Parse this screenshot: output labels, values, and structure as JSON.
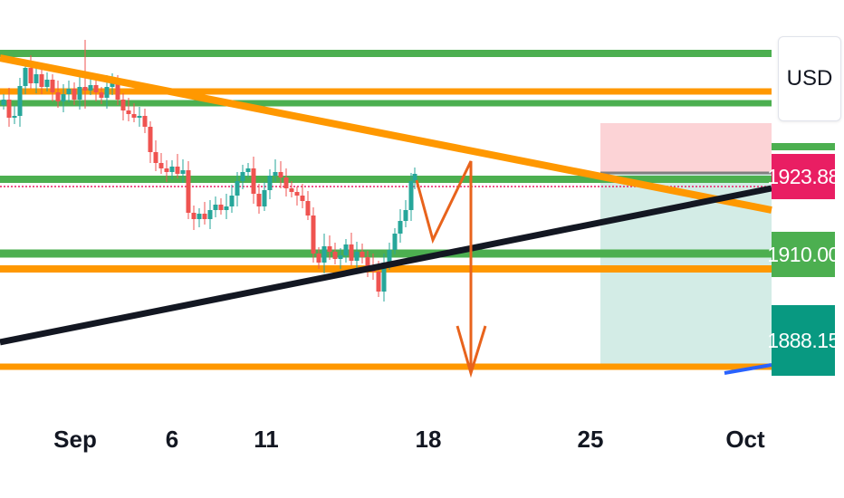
{
  "currency": "USD",
  "colors": {
    "up": "#26a69a",
    "down": "#ef5350",
    "support_green": "#4caf50",
    "orange": "#ff9800",
    "trend_black": "#131722",
    "drawing": "#e8631c",
    "sl_zone": "#f8c8cc",
    "tp_zone": "#cfe9e3",
    "price_line": "#e91e63"
  },
  "price_labels": [
    {
      "name": "price-label-current",
      "value": "1923.88",
      "color": "#e91e63"
    },
    {
      "name": "price-label-entry",
      "value": "1910.00",
      "color": "#4caf50"
    },
    {
      "name": "price-label-target",
      "value": "1888.15",
      "color": "#089981"
    }
  ],
  "chart_data": {
    "type": "candlestick",
    "x_axis_ticks": [
      "Sep",
      "6",
      "11",
      "18",
      "25",
      "Oct"
    ],
    "y_range": [
      1875,
      1955
    ],
    "current_price": 1923.88,
    "levels": [
      {
        "type": "support-resistance",
        "color": "green",
        "price": 1950.2
      },
      {
        "type": "support-resistance",
        "color": "orange",
        "price": 1941.8
      },
      {
        "type": "support-resistance",
        "color": "green",
        "price": 1938.9
      },
      {
        "type": "support-resistance",
        "color": "green",
        "price": 1926.3
      },
      {
        "type": "support-resistance",
        "color": "green",
        "price": 1910.8
      },
      {
        "type": "support-resistance",
        "color": "orange",
        "price": 1906.0
      },
      {
        "type": "support-resistance",
        "color": "orange",
        "price": 1888.2
      }
    ],
    "position": {
      "direction": "short",
      "stop": 1932.5,
      "entry": 1910.0,
      "target": 1888.15
    }
  }
}
